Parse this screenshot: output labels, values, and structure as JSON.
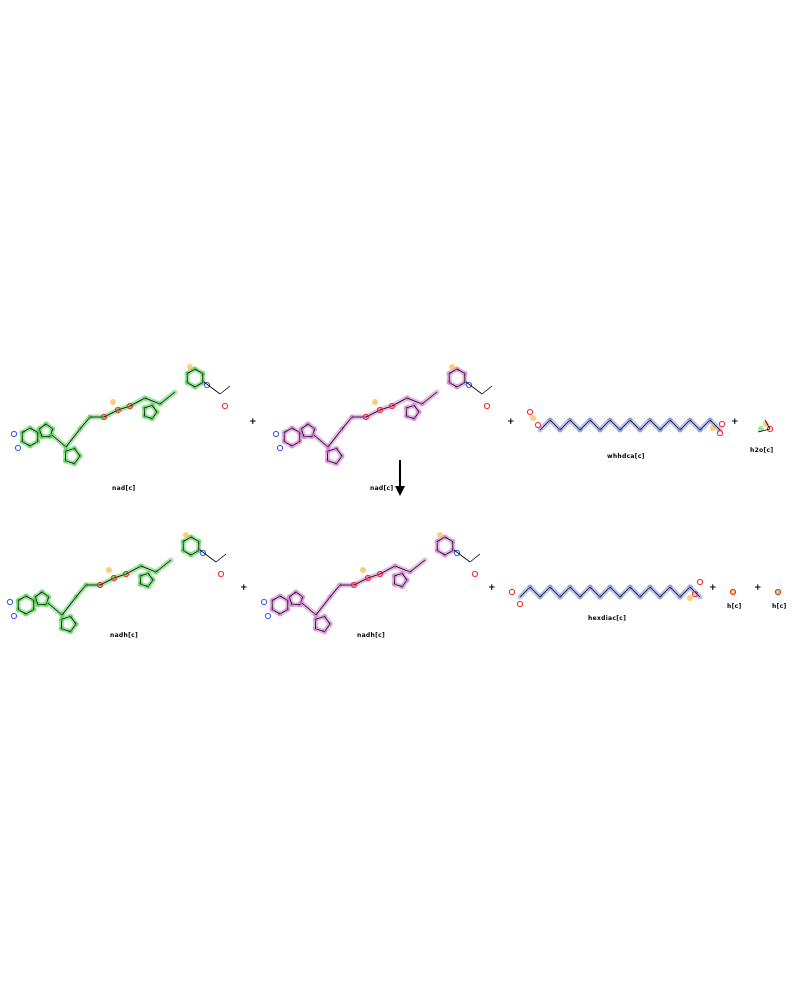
{
  "reactants": [
    {
      "id": "nad1",
      "label": "nad[c]",
      "color": "#33cc33"
    },
    {
      "id": "nad2",
      "label": "nad[c]",
      "color": "#cc66cc"
    },
    {
      "id": "whhdca",
      "label": "whhdca[c]",
      "color": "#6b7fdc"
    },
    {
      "id": "h2o",
      "label": "h2o[c]",
      "color": "#33cc33"
    }
  ],
  "products": [
    {
      "id": "nadh1",
      "label": "nadh[c]",
      "color": "#33cc33"
    },
    {
      "id": "nadh2",
      "label": "nadh[c]",
      "color": "#cc66cc"
    },
    {
      "id": "hexdiac",
      "label": "hexdiac[c]",
      "color": "#6b7fdc"
    },
    {
      "id": "h1",
      "label": "h[c]",
      "color": "#ff9900"
    },
    {
      "id": "h2",
      "label": "h[c]",
      "color": "#33cc33"
    }
  ],
  "operator_plus": "+",
  "colors": {
    "green": "#33cc33",
    "magenta": "#cc66cc",
    "blue": "#6b7fdc",
    "orange": "#ff9900",
    "nitrogen": "#3355ff",
    "oxygen": "#ff2222",
    "bond": "#000000"
  }
}
